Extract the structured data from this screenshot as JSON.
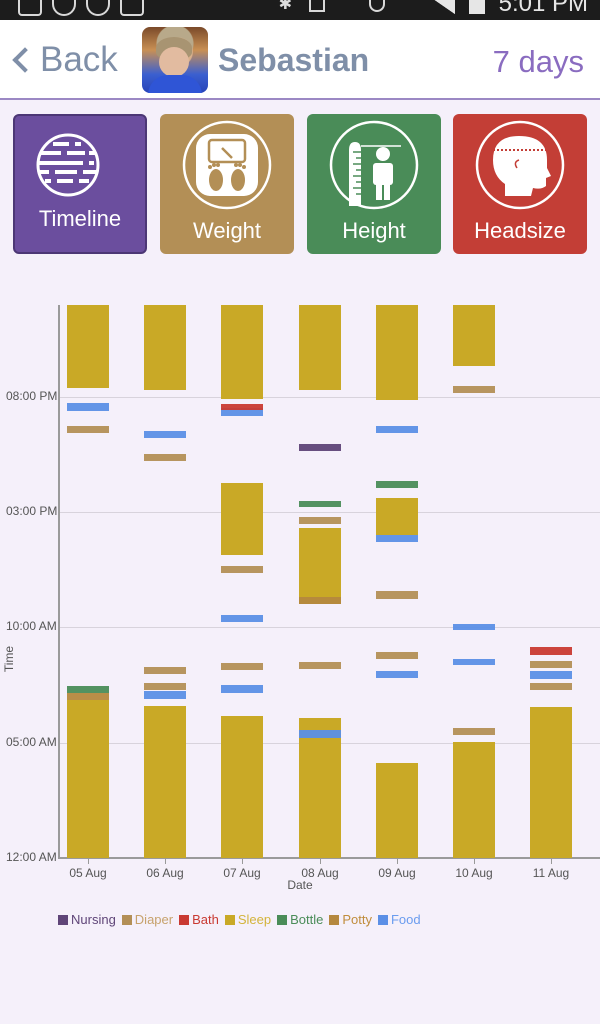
{
  "status_bar": {
    "time": "5:01 PM",
    "icons": [
      "gallery-icon",
      "missed-call-icon",
      "missed-call-icon",
      "voicemail-icon",
      "bluetooth-icon",
      "nfc-icon",
      "mute-icon",
      "alarm-icon",
      "data-transfer-icon",
      "signal-icon",
      "battery-icon"
    ]
  },
  "header": {
    "back_label": "Back",
    "child_name": "Sebastian",
    "range_label": "7 days"
  },
  "tiles": [
    {
      "id": "timeline",
      "label": "Timeline",
      "color": "#6b4e9e",
      "icon": "timeline-icon",
      "selected": true
    },
    {
      "id": "weight",
      "label": "Weight",
      "color": "#b38f56",
      "icon": "scale-icon",
      "selected": false
    },
    {
      "id": "height",
      "label": "Height",
      "color": "#4a8c58",
      "icon": "height-ruler-icon",
      "selected": false
    },
    {
      "id": "headsize",
      "label": "Headsize",
      "color": "#c33e36",
      "icon": "head-measure-icon",
      "selected": false
    }
  ],
  "colors": {
    "Nursing": "#5f4578",
    "Diaper": "#b38f56",
    "Bath": "#c93a32",
    "Sleep": "#c9a926",
    "Bottle": "#4a8c58",
    "Potty": "#b5883e",
    "Food": "#5b8fe6"
  },
  "legend_text_colors": {
    "Nursing": "#5f4578",
    "Diaper": "#c7a26c",
    "Bath": "#c93a32",
    "Sleep": "#d3b43a",
    "Bottle": "#4a8c58",
    "Potty": "#c08d3c",
    "Food": "#6a9cef"
  },
  "chart_data": {
    "type": "timeline",
    "title": "",
    "xlabel": "Date",
    "ylabel": "Time",
    "categories": [
      "05 Aug",
      "06 Aug",
      "07 Aug",
      "08 Aug",
      "09 Aug",
      "10 Aug",
      "11 Aug"
    ],
    "y_ticks": [
      "12:00 AM",
      "05:00 AM",
      "10:00 AM",
      "03:00 PM",
      "08:00 PM"
    ],
    "y_tick_hours": [
      0,
      5,
      10,
      15,
      20
    ],
    "ylim_hours": [
      0,
      24
    ],
    "grid": true,
    "legend": [
      "Nursing",
      "Diaper",
      "Bath",
      "Sleep",
      "Bottle",
      "Potty",
      "Food"
    ],
    "legend_position": "bottom",
    "events": [
      {
        "day": 0,
        "type": "Sleep",
        "start": 0,
        "end": 6.85
      },
      {
        "day": 0,
        "type": "Potty",
        "start": 6.85,
        "end": 7.15
      },
      {
        "day": 0,
        "type": "Bottle",
        "start": 7.15,
        "end": 7.45
      },
      {
        "day": 0,
        "type": "Diaper",
        "start": 18.45,
        "end": 18.75
      },
      {
        "day": 0,
        "type": "Food",
        "start": 19.4,
        "end": 19.75
      },
      {
        "day": 0,
        "type": "Sleep",
        "start": 20.4,
        "end": 24
      },
      {
        "day": 1,
        "type": "Sleep",
        "start": 0,
        "end": 6.6
      },
      {
        "day": 1,
        "type": "Food",
        "start": 6.9,
        "end": 7.25
      },
      {
        "day": 1,
        "type": "Diaper",
        "start": 7.3,
        "end": 7.6
      },
      {
        "day": 1,
        "type": "Diaper",
        "start": 8.0,
        "end": 8.3
      },
      {
        "day": 1,
        "type": "Diaper",
        "start": 17.2,
        "end": 17.5
      },
      {
        "day": 1,
        "type": "Food",
        "start": 18.2,
        "end": 18.5
      },
      {
        "day": 1,
        "type": "Sleep",
        "start": 20.3,
        "end": 24
      },
      {
        "day": 2,
        "type": "Sleep",
        "start": 0,
        "end": 6.15
      },
      {
        "day": 2,
        "type": "Food",
        "start": 7.15,
        "end": 7.5
      },
      {
        "day": 2,
        "type": "Diaper",
        "start": 8.15,
        "end": 8.45
      },
      {
        "day": 2,
        "type": "Food",
        "start": 10.25,
        "end": 10.55
      },
      {
        "day": 2,
        "type": "Diaper",
        "start": 12.35,
        "end": 12.65
      },
      {
        "day": 2,
        "type": "Sleep",
        "start": 13.15,
        "end": 16.25
      },
      {
        "day": 2,
        "type": "Food",
        "start": 19.15,
        "end": 19.5
      },
      {
        "day": 2,
        "type": "Bath",
        "start": 19.5,
        "end": 19.7
      },
      {
        "day": 2,
        "type": "Sleep",
        "start": 19.9,
        "end": 24
      },
      {
        "day": 3,
        "type": "Sleep",
        "start": 0,
        "end": 6.05
      },
      {
        "day": 3,
        "type": "Food",
        "start": 5.2,
        "end": 5.55
      },
      {
        "day": 3,
        "type": "Diaper",
        "start": 8.2,
        "end": 8.5
      },
      {
        "day": 3,
        "type": "Sleep",
        "start": 11.0,
        "end": 14.3
      },
      {
        "day": 3,
        "type": "Potty",
        "start": 11.0,
        "end": 11.3
      },
      {
        "day": 3,
        "type": "Diaper",
        "start": 14.5,
        "end": 14.8
      },
      {
        "day": 3,
        "type": "Bottle",
        "start": 15.2,
        "end": 15.5
      },
      {
        "day": 3,
        "type": "Nursing",
        "start": 17.65,
        "end": 17.95
      },
      {
        "day": 3,
        "type": "Sleep",
        "start": 20.3,
        "end": 24
      },
      {
        "day": 4,
        "type": "Sleep",
        "start": 0,
        "end": 4.1
      },
      {
        "day": 4,
        "type": "Food",
        "start": 7.8,
        "end": 8.1
      },
      {
        "day": 4,
        "type": "Diaper",
        "start": 8.65,
        "end": 8.95
      },
      {
        "day": 4,
        "type": "Diaper",
        "start": 11.25,
        "end": 11.6
      },
      {
        "day": 4,
        "type": "Food",
        "start": 13.7,
        "end": 14.0
      },
      {
        "day": 4,
        "type": "Sleep",
        "start": 14.0,
        "end": 15.6
      },
      {
        "day": 4,
        "type": "Bottle",
        "start": 16.05,
        "end": 16.35
      },
      {
        "day": 4,
        "type": "Food",
        "start": 18.45,
        "end": 18.75
      },
      {
        "day": 4,
        "type": "Sleep",
        "start": 19.85,
        "end": 24
      },
      {
        "day": 5,
        "type": "Sleep",
        "start": 0,
        "end": 5.05
      },
      {
        "day": 5,
        "type": "Diaper",
        "start": 5.35,
        "end": 5.65
      },
      {
        "day": 5,
        "type": "Food",
        "start": 8.35,
        "end": 8.65
      },
      {
        "day": 5,
        "type": "Food",
        "start": 9.9,
        "end": 10.15
      },
      {
        "day": 5,
        "type": "Diaper",
        "start": 20.15,
        "end": 20.45
      },
      {
        "day": 5,
        "type": "Sleep",
        "start": 21.35,
        "end": 24
      },
      {
        "day": 6,
        "type": "Sleep",
        "start": 0,
        "end": 6.55
      },
      {
        "day": 6,
        "type": "Diaper",
        "start": 7.3,
        "end": 7.6
      },
      {
        "day": 6,
        "type": "Food",
        "start": 7.75,
        "end": 8.1
      },
      {
        "day": 6,
        "type": "Diaper",
        "start": 8.25,
        "end": 8.55
      },
      {
        "day": 6,
        "type": "Bath",
        "start": 8.8,
        "end": 9.15
      }
    ]
  }
}
